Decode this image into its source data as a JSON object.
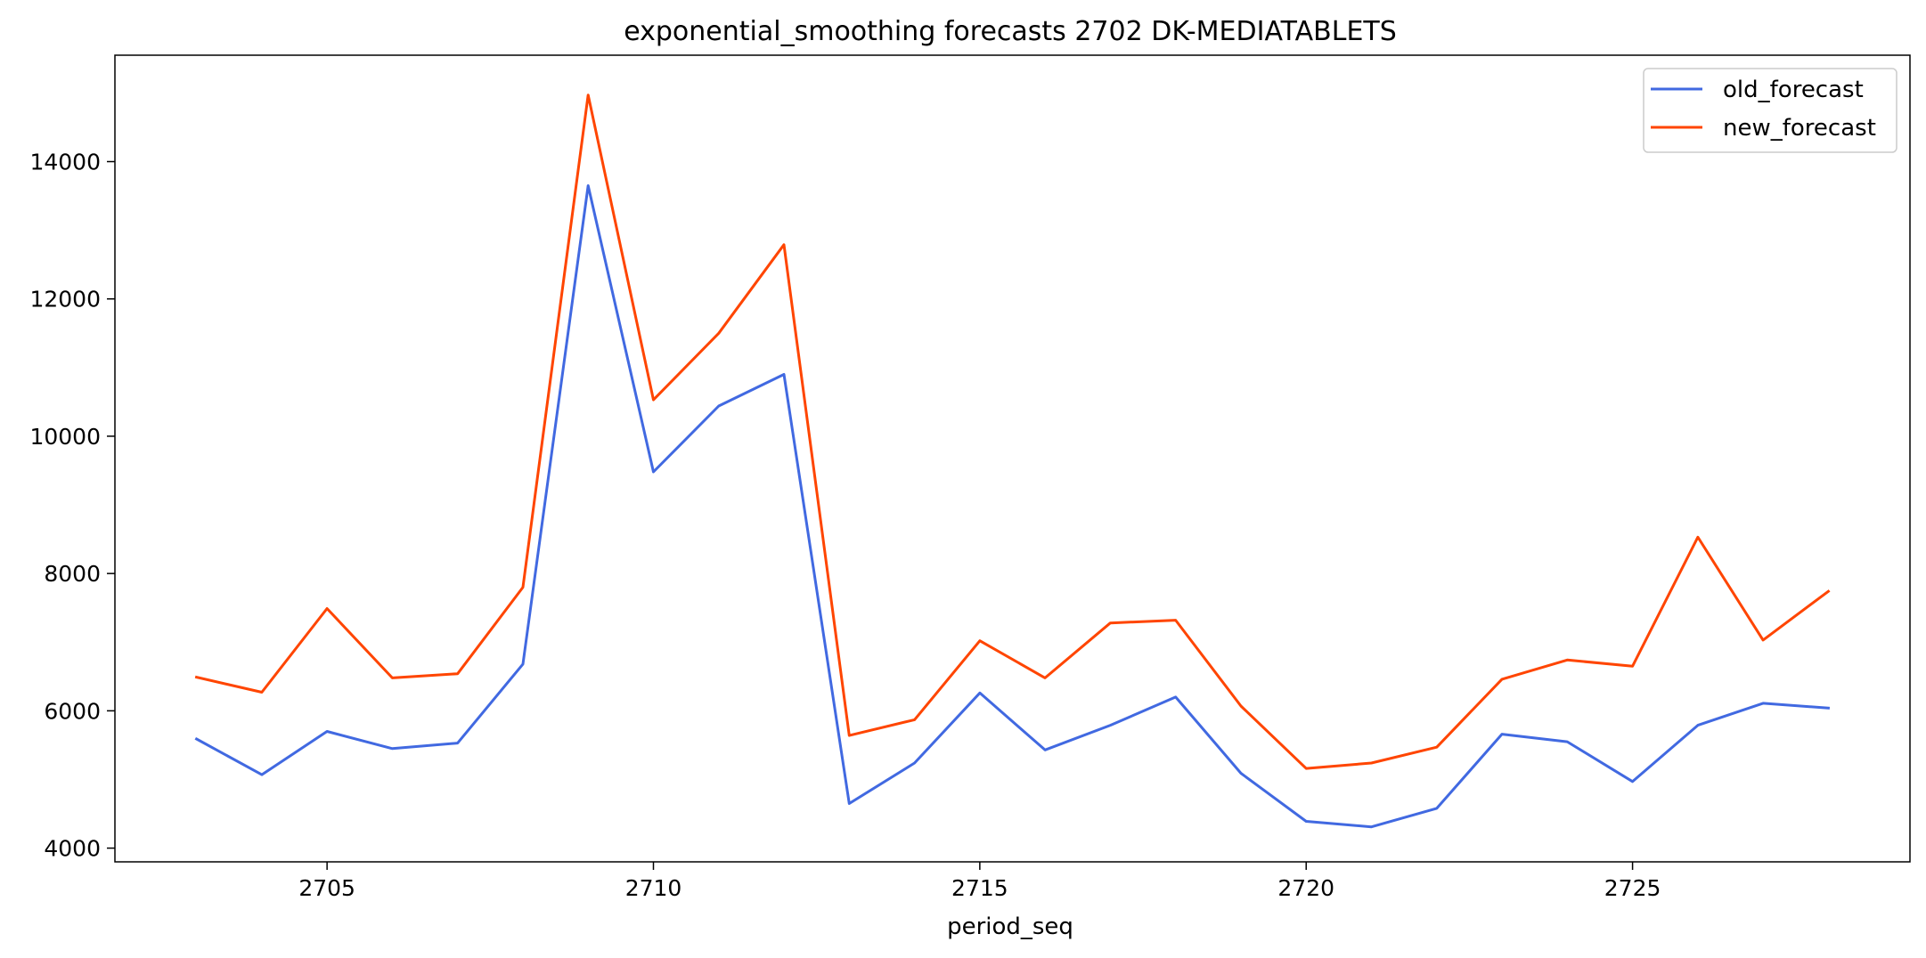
{
  "chart_data": {
    "type": "line",
    "title": "exponential_smoothing forecasts 2702 DK-MEDIATABLETS",
    "xlabel": "period_seq",
    "ylabel": "",
    "x": [
      2703,
      2704,
      2705,
      2706,
      2707,
      2708,
      2709,
      2710,
      2711,
      2712,
      2713,
      2714,
      2715,
      2716,
      2717,
      2718,
      2719,
      2720,
      2721,
      2722,
      2723,
      2724,
      2725,
      2726,
      2727,
      2728
    ],
    "xlim": [
      2701.75,
      2729.25
    ],
    "ylim": [
      3800,
      15550
    ],
    "xticks": [
      2705,
      2710,
      2715,
      2720,
      2725
    ],
    "yticks": [
      4000,
      6000,
      8000,
      10000,
      12000,
      14000
    ],
    "grid": false,
    "legend_position": "top-right",
    "series": [
      {
        "name": "old_forecast",
        "color": "#4169e1",
        "values": [
          5590,
          5070,
          5700,
          5450,
          5530,
          6680,
          13650,
          9480,
          10440,
          10900,
          4650,
          5240,
          6260,
          5430,
          5790,
          6200,
          5090,
          4390,
          4310,
          4580,
          5660,
          5550,
          4970,
          5790,
          6110,
          6040
        ]
      },
      {
        "name": "new_forecast",
        "color": "#ff4500",
        "values": [
          6490,
          6270,
          7490,
          6480,
          6540,
          7800,
          14970,
          10530,
          11500,
          12790,
          5640,
          5870,
          7020,
          6480,
          7280,
          7320,
          6070,
          5160,
          5240,
          5470,
          6460,
          6740,
          6650,
          8530,
          7030,
          7740
        ]
      }
    ]
  }
}
